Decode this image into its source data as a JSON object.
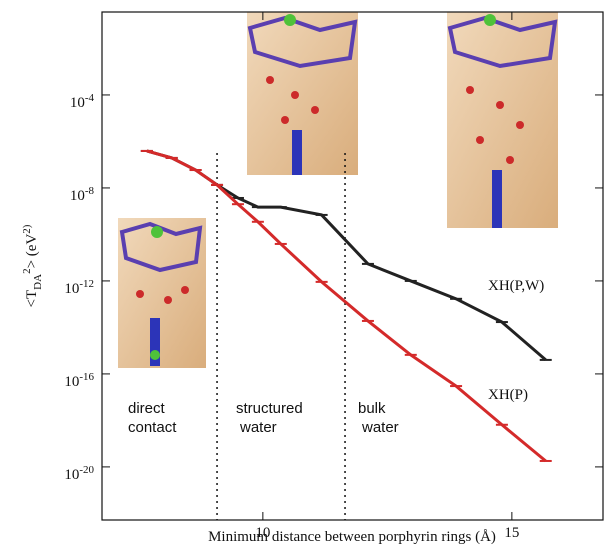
{
  "chart_data": {
    "type": "line",
    "x_label": "Minimum distance between porphyrin rings (Å)",
    "y_label": "<T_DA^2> (eV^2)",
    "y_scale": "log",
    "xlim": [
      6.77,
      16.83
    ],
    "xticks": [
      10,
      15
    ],
    "ylim": [
      5.2e-23,
      0.37
    ],
    "yticks": [
      {
        "value": 0.0001,
        "label": "10^-4"
      },
      {
        "value": 1e-08,
        "label": "10^-8"
      },
      {
        "value": 1e-12,
        "label": "10^-12"
      },
      {
        "value": 1e-16,
        "label": "10^-16"
      },
      {
        "value": 1e-20,
        "label": "10^-20"
      }
    ],
    "dividers": [
      9.08,
      11.65
    ],
    "series": [
      {
        "name": "XH(P,W)",
        "color": "#222222",
        "x": [
          7.67,
          8.17,
          8.65,
          9.08,
          9.5,
          9.9,
          10.36,
          11.18,
          12.11,
          12.97,
          13.88,
          14.8,
          15.68
        ],
        "values": [
          3.9e-07,
          1.95e-07,
          5.9e-08,
          1.35e-08,
          3.7e-09,
          1.5e-09,
          1.5e-09,
          6.9e-10,
          5.4e-12,
          1e-12,
          1.7e-13,
          1.7e-14,
          4e-16
        ]
      },
      {
        "name": "XH(P)",
        "color": "#d42a2a",
        "x": [
          7.67,
          8.17,
          8.65,
          9.08,
          9.5,
          9.9,
          10.36,
          11.18,
          12.11,
          12.97,
          13.88,
          14.8,
          15.68
        ],
        "values": [
          3.9e-07,
          1.95e-07,
          5.9e-08,
          1.35e-08,
          2e-09,
          3.5e-10,
          3.9e-11,
          9.1e-13,
          1.9e-14,
          6.6e-16,
          3e-17,
          6.5e-19,
          1.8e-20
        ]
      }
    ],
    "annotations": [
      [
        "direct",
        "contact"
      ],
      [
        "structured",
        "water"
      ],
      [
        "bulk",
        "water"
      ]
    ]
  }
}
